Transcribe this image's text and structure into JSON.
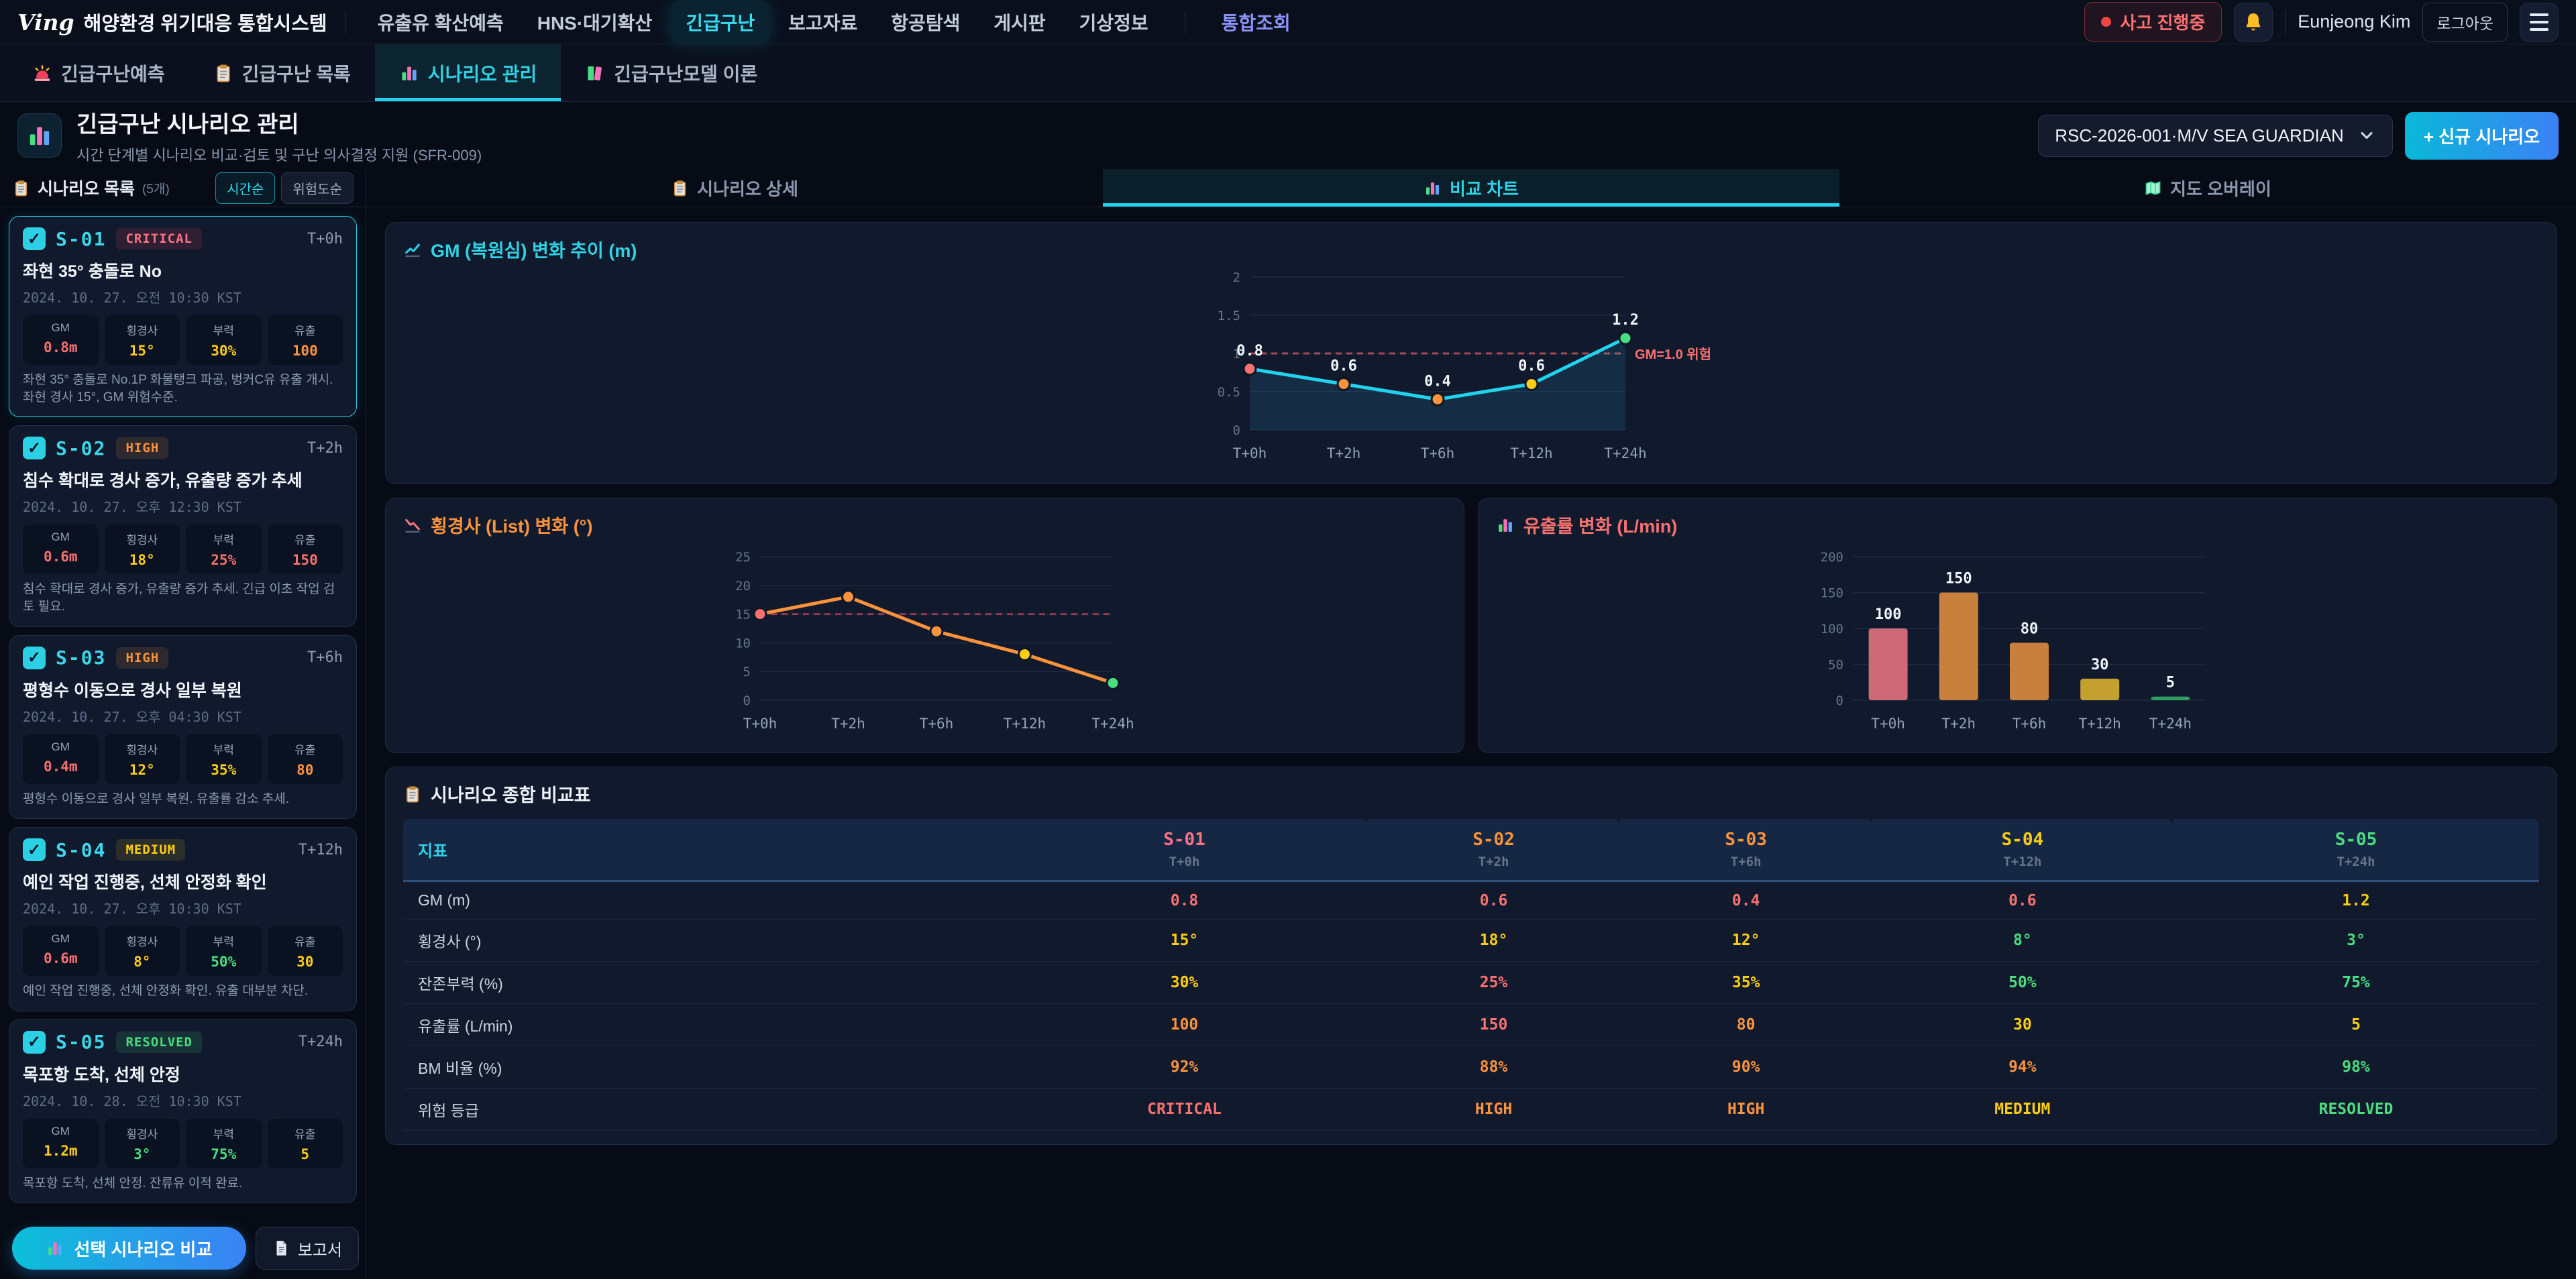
{
  "topnav": {
    "logo_mark": "Ving",
    "logo_text": "해양환경 위기대응 통합시스템",
    "items": [
      {
        "label": "유출유 확산예측"
      },
      {
        "label": "HNS·대기확산"
      },
      {
        "label": "긴급구난",
        "active": true
      },
      {
        "label": "보고자료"
      },
      {
        "label": "항공탐색"
      },
      {
        "label": "게시판"
      },
      {
        "label": "기상정보"
      },
      {
        "label": "통합조회",
        "highlight": true,
        "divider_before": true
      }
    ],
    "status_badge": "사고 진행중",
    "user_name": "Eunjeong Kim",
    "logout_label": "로그아웃"
  },
  "tabbar": {
    "tabs": [
      {
        "icon": "siren-icon",
        "label": "긴급구난예측"
      },
      {
        "icon": "clipboard-icon",
        "label": "긴급구난 목록"
      },
      {
        "icon": "chart-icon",
        "label": "시나리오 관리",
        "active": true
      },
      {
        "icon": "books-icon",
        "label": "긴급구난모델 이론"
      }
    ]
  },
  "header": {
    "title": "긴급구난 시나리오 관리",
    "subtitle": "시간 단계별 시나리오 비교·검토 및 구난 의사결정 지원 (SFR-009)",
    "incident_select": "RSC-2026-001·M/V SEA GUARDIAN",
    "new_scenario_button": "+ 신규 시나리오"
  },
  "sidebar": {
    "title": "시나리오 목록",
    "count": "(5개)",
    "sort_time": "시간순",
    "sort_risk": "위험도순",
    "scenarios": [
      {
        "id": "S-01",
        "badge": "CRITICAL",
        "time": "T+0h",
        "selected": true,
        "title": "좌현 35° 충돌로 No",
        "datetime": "2024. 10. 27. 오전 10:30 KST",
        "stats": [
          {
            "label": "GM",
            "value": "0.8m",
            "color": "red"
          },
          {
            "label": "횡경사",
            "value": "15°",
            "color": "yellow"
          },
          {
            "label": "부력",
            "value": "30%",
            "color": "yellow"
          },
          {
            "label": "유출",
            "value": "100",
            "color": "orange"
          }
        ],
        "desc": "좌현 35° 충돌로 No.1P 화물탱크 파공, 벙커C유 유출 개시. 좌현 경사 15°, GM 위험수준."
      },
      {
        "id": "S-02",
        "badge": "HIGH",
        "time": "T+2h",
        "selected": false,
        "title": "침수 확대로 경사 증가, 유출량 증가 추세",
        "datetime": "2024. 10. 27. 오후 12:30 KST",
        "stats": [
          {
            "label": "GM",
            "value": "0.6m",
            "color": "red"
          },
          {
            "label": "횡경사",
            "value": "18°",
            "color": "yellow"
          },
          {
            "label": "부력",
            "value": "25%",
            "color": "red"
          },
          {
            "label": "유출",
            "value": "150",
            "color": "red"
          }
        ],
        "desc": "침수 확대로 경사 증가, 유출량 증가 추세. 긴급 이초 작업 검토 필요."
      },
      {
        "id": "S-03",
        "badge": "HIGH",
        "time": "T+6h",
        "selected": false,
        "title": "평형수 이동으로 경사 일부 복원",
        "datetime": "2024. 10. 27. 오후 04:30 KST",
        "stats": [
          {
            "label": "GM",
            "value": "0.4m",
            "color": "red"
          },
          {
            "label": "횡경사",
            "value": "12°",
            "color": "yellow"
          },
          {
            "label": "부력",
            "value": "35%",
            "color": "yellow"
          },
          {
            "label": "유출",
            "value": "80",
            "color": "orange"
          }
        ],
        "desc": "평형수 이동으로 경사 일부 복원. 유출률 감소 추세."
      },
      {
        "id": "S-04",
        "badge": "MEDIUM",
        "time": "T+12h",
        "selected": false,
        "title": "예인 작업 진행중, 선체 안정화 확인",
        "datetime": "2024. 10. 27. 오후 10:30 KST",
        "stats": [
          {
            "label": "GM",
            "value": "0.6m",
            "color": "red"
          },
          {
            "label": "횡경사",
            "value": "8°",
            "color": "yellow"
          },
          {
            "label": "부력",
            "value": "50%",
            "color": "green"
          },
          {
            "label": "유출",
            "value": "30",
            "color": "yellow"
          }
        ],
        "desc": "예인 작업 진행중, 선체 안정화 확인. 유출 대부분 차단."
      },
      {
        "id": "S-05",
        "badge": "RESOLVED",
        "time": "T+24h",
        "selected": false,
        "title": "목포항 도착, 선체 안정",
        "datetime": "2024. 10. 28. 오전 10:30 KST",
        "stats": [
          {
            "label": "GM",
            "value": "1.2m",
            "color": "yellow"
          },
          {
            "label": "횡경사",
            "value": "3°",
            "color": "green"
          },
          {
            "label": "부력",
            "value": "75%",
            "color": "green"
          },
          {
            "label": "유출",
            "value": "5",
            "color": "yellow"
          }
        ],
        "desc": "목포항 도착, 선체 안정. 잔류유 이적 완료."
      }
    ]
  },
  "main": {
    "tabs": [
      {
        "icon": "clipboard-icon",
        "label": "시나리오 상세"
      },
      {
        "icon": "chart-icon",
        "label": "비교 차트",
        "active": true
      },
      {
        "icon": "map-icon",
        "label": "지도 오버레이"
      }
    ]
  },
  "chart_data": [
    {
      "type": "line",
      "title": "GM (복원심) 변화 추이 (m)",
      "categories": [
        "T+0h",
        "T+2h",
        "T+6h",
        "T+12h",
        "T+24h"
      ],
      "values": [
        0.8,
        0.6,
        0.4,
        0.6,
        1.2
      ],
      "ylim": [
        0,
        2
      ],
      "yticks": [
        0,
        0.5,
        1,
        1.5,
        2
      ],
      "threshold": {
        "value": 1.0,
        "label": "GM=1.0 위험",
        "color": "#a84a52"
      },
      "line_color": "#22d3ee",
      "point_colors": [
        "#f87171",
        "#fb923c",
        "#fb923c",
        "#facc15",
        "#4ade80"
      ],
      "area_fill": true,
      "show_value_labels": true,
      "grid": true,
      "legend": "none"
    },
    {
      "type": "line",
      "title": "횡경사 (List) 변화 (°)",
      "categories": [
        "T+0h",
        "T+2h",
        "T+6h",
        "T+12h",
        "T+24h"
      ],
      "values": [
        15,
        18,
        12,
        8,
        3
      ],
      "ylim": [
        0,
        25
      ],
      "yticks": [
        0,
        5,
        10,
        15,
        20,
        25
      ],
      "threshold": {
        "value": 15,
        "label": "",
        "color": "#8f3a50"
      },
      "line_color": "#fb923c",
      "point_colors": [
        "#f87171",
        "#fb923c",
        "#fb923c",
        "#facc15",
        "#4ade80"
      ],
      "area_fill": false,
      "show_value_labels": false,
      "grid": true,
      "legend": "none"
    },
    {
      "type": "bar",
      "title": "유출률 변화 (L/min)",
      "categories": [
        "T+0h",
        "T+2h",
        "T+6h",
        "T+12h",
        "T+24h"
      ],
      "values": [
        100,
        150,
        80,
        30,
        5
      ],
      "ylim": [
        0,
        200
      ],
      "yticks": [
        0,
        50,
        100,
        150,
        200
      ],
      "bar_colors": [
        "#ce6a77",
        "#c8803c",
        "#c8803c",
        "#c4a030",
        "#2e9e60"
      ],
      "show_value_labels": true,
      "grid": true,
      "legend": "none"
    }
  ],
  "comparison_table": {
    "title": "시나리오 종합 비교표",
    "header_label": "지표",
    "columns": [
      {
        "id": "S-01",
        "time": "T+0h",
        "color": "#fb7185"
      },
      {
        "id": "S-02",
        "time": "T+2h",
        "color": "#fb923c"
      },
      {
        "id": "S-03",
        "time": "T+6h",
        "color": "#fb923c"
      },
      {
        "id": "S-04",
        "time": "T+12h",
        "color": "#facc15"
      },
      {
        "id": "S-05",
        "time": "T+24h",
        "color": "#4ade80"
      }
    ],
    "rows": [
      {
        "label": "GM (m)",
        "values": [
          {
            "text": "0.8",
            "color": "red"
          },
          {
            "text": "0.6",
            "color": "red"
          },
          {
            "text": "0.4",
            "color": "red"
          },
          {
            "text": "0.6",
            "color": "red"
          },
          {
            "text": "1.2",
            "color": "yellow"
          }
        ]
      },
      {
        "label": "횡경사 (°)",
        "values": [
          {
            "text": "15°",
            "color": "yellow"
          },
          {
            "text": "18°",
            "color": "yellow"
          },
          {
            "text": "12°",
            "color": "yellow"
          },
          {
            "text": "8°",
            "color": "green"
          },
          {
            "text": "3°",
            "color": "green"
          }
        ]
      },
      {
        "label": "잔존부력 (%)",
        "values": [
          {
            "text": "30%",
            "color": "yellow"
          },
          {
            "text": "25%",
            "color": "red"
          },
          {
            "text": "35%",
            "color": "yellow"
          },
          {
            "text": "50%",
            "color": "green"
          },
          {
            "text": "75%",
            "color": "green"
          }
        ]
      },
      {
        "label": "유출률 (L/min)",
        "values": [
          {
            "text": "100",
            "color": "orange"
          },
          {
            "text": "150",
            "color": "red"
          },
          {
            "text": "80",
            "color": "orange"
          },
          {
            "text": "30",
            "color": "yellow"
          },
          {
            "text": "5",
            "color": "yellow"
          }
        ]
      },
      {
        "label": "BM 비율 (%)",
        "values": [
          {
            "text": "92%",
            "color": "orange"
          },
          {
            "text": "88%",
            "color": "orange"
          },
          {
            "text": "90%",
            "color": "orange"
          },
          {
            "text": "94%",
            "color": "orange"
          },
          {
            "text": "98%",
            "color": "green"
          }
        ]
      },
      {
        "label": "위험 등급",
        "values": [
          {
            "text": "CRITICAL",
            "color": "red"
          },
          {
            "text": "HIGH",
            "color": "orange"
          },
          {
            "text": "HIGH",
            "color": "orange"
          },
          {
            "text": "MEDIUM",
            "color": "yellow"
          },
          {
            "text": "RESOLVED",
            "color": "green"
          }
        ]
      }
    ]
  },
  "footer": {
    "compare_label": "선택 시나리오 비교",
    "report_label": "보고서"
  },
  "colors": {
    "accent_cyan": "#22d3ee",
    "accent_blue": "#3b82f6",
    "status_red": "#f87171",
    "status_orange": "#fb923c",
    "status_yellow": "#facc15",
    "status_green": "#4ade80",
    "special_nav": "#8b93f8"
  }
}
